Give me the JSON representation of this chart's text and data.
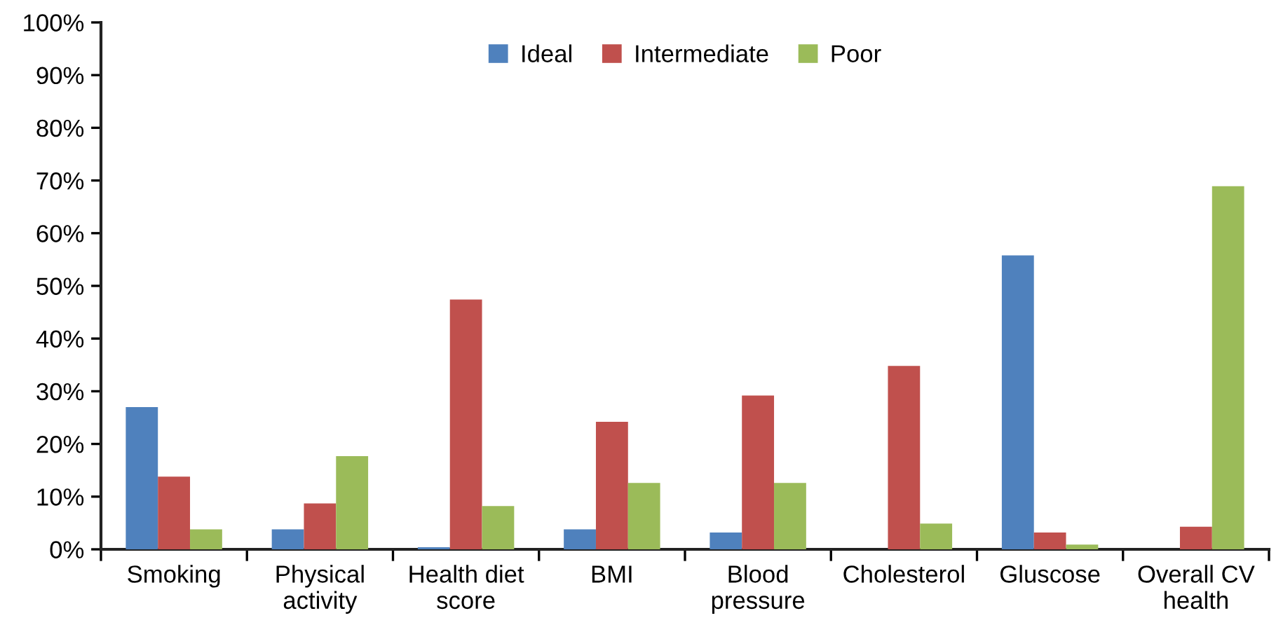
{
  "chart_data": {
    "type": "bar",
    "categories": [
      "Smoking",
      "Physical\nactivity",
      "Health diet\nscore",
      "BMI",
      "Blood\npressure",
      "Cholesterol",
      "Gluscose",
      "Overall CV\nhealth"
    ],
    "series": [
      {
        "name": "Ideal",
        "color": "#4f81bd",
        "values": [
          27,
          3.8,
          0.4,
          3.8,
          3.2,
          0,
          55.8,
          0
        ]
      },
      {
        "name": "Intermediate",
        "color": "#c0504d",
        "values": [
          13.8,
          8.7,
          47.4,
          24.2,
          29.2,
          34.8,
          3.2,
          4.3
        ]
      },
      {
        "name": "Poor",
        "color": "#9bbb59",
        "values": [
          3.8,
          17.7,
          8.2,
          12.6,
          12.6,
          4.9,
          0.9,
          68.9
        ]
      }
    ],
    "ylim": [
      0,
      100
    ],
    "yticks": [
      {
        "value": 0,
        "label": "0%"
      },
      {
        "value": 10,
        "label": "10%"
      },
      {
        "value": 20,
        "label": "20%"
      },
      {
        "value": 30,
        "label": "30%"
      },
      {
        "value": 40,
        "label": "40%"
      },
      {
        "value": 50,
        "label": "50%"
      },
      {
        "value": 60,
        "label": "60%"
      },
      {
        "value": 70,
        "label": "70%"
      },
      {
        "value": 80,
        "label": "80%"
      },
      {
        "value": 90,
        "label": "90%"
      },
      {
        "value": 100,
        "label": "100%"
      }
    ],
    "grid": false,
    "legend": "top"
  }
}
